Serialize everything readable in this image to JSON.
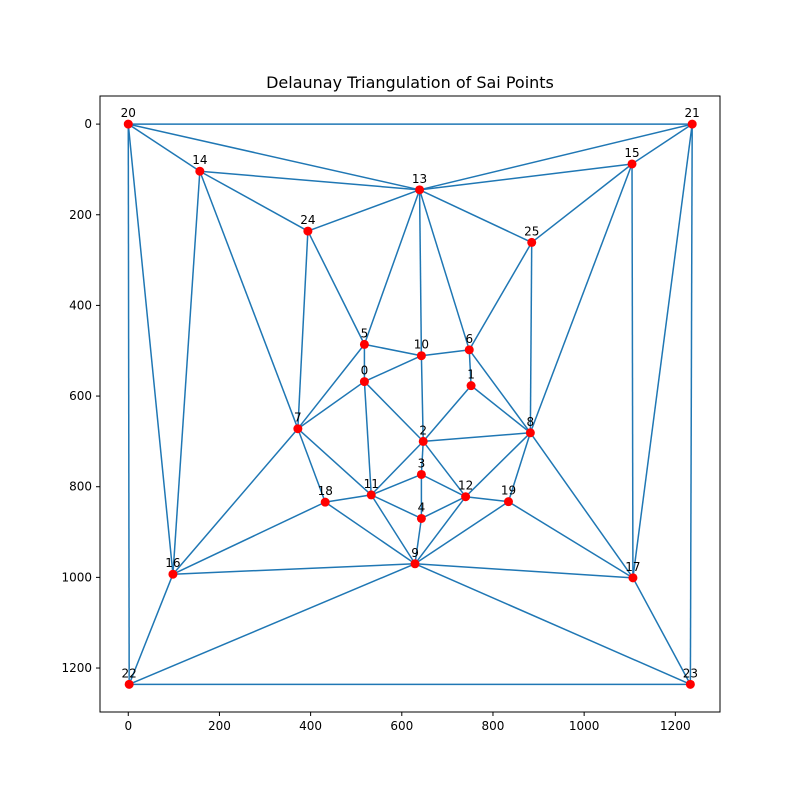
{
  "chart_data": {
    "type": "scatter",
    "title": "Delaunay Triangulation of Sai Points",
    "xlabel": "",
    "ylabel": "",
    "xlim": [
      -62,
      1298
    ],
    "ylim": [
      1297,
      -62
    ],
    "y_inverted": true,
    "grid": false,
    "x_ticks": [
      0,
      200,
      400,
      600,
      800,
      1000,
      1200
    ],
    "y_ticks": [
      0,
      200,
      400,
      600,
      800,
      1000,
      1200
    ],
    "colors": {
      "edges": "#1f77b4",
      "points": "#ff0000"
    },
    "points": [
      {
        "label": "0",
        "x": 518,
        "y": 568
      },
      {
        "label": "1",
        "x": 752,
        "y": 577
      },
      {
        "label": "2",
        "x": 647,
        "y": 700
      },
      {
        "label": "3",
        "x": 643,
        "y": 773
      },
      {
        "label": "4",
        "x": 643,
        "y": 870
      },
      {
        "label": "5",
        "x": 518,
        "y": 486
      },
      {
        "label": "6",
        "x": 748,
        "y": 498
      },
      {
        "label": "7",
        "x": 372,
        "y": 672
      },
      {
        "label": "8",
        "x": 882,
        "y": 681
      },
      {
        "label": "9",
        "x": 629,
        "y": 970
      },
      {
        "label": "10",
        "x": 643,
        "y": 511
      },
      {
        "label": "11",
        "x": 533,
        "y": 818
      },
      {
        "label": "12",
        "x": 740,
        "y": 822
      },
      {
        "label": "13",
        "x": 639,
        "y": 145
      },
      {
        "label": "14",
        "x": 157,
        "y": 104
      },
      {
        "label": "15",
        "x": 1105,
        "y": 88
      },
      {
        "label": "16",
        "x": 98,
        "y": 993
      },
      {
        "label": "17",
        "x": 1107,
        "y": 1001
      },
      {
        "label": "18",
        "x": 432,
        "y": 834
      },
      {
        "label": "19",
        "x": 834,
        "y": 833
      },
      {
        "label": "20",
        "x": 0,
        "y": 0
      },
      {
        "label": "21",
        "x": 1237,
        "y": 0
      },
      {
        "label": "22",
        "x": 2,
        "y": 1236
      },
      {
        "label": "23",
        "x": 1233,
        "y": 1236
      },
      {
        "label": "24",
        "x": 394,
        "y": 236
      },
      {
        "label": "25",
        "x": 885,
        "y": 261
      }
    ],
    "edges": [
      [
        20,
        21
      ],
      [
        20,
        14
      ],
      [
        20,
        13
      ],
      [
        20,
        16
      ],
      [
        20,
        22
      ],
      [
        14,
        13
      ],
      [
        14,
        24
      ],
      [
        14,
        7
      ],
      [
        14,
        16
      ],
      [
        13,
        24
      ],
      [
        13,
        5
      ],
      [
        13,
        10
      ],
      [
        13,
        6
      ],
      [
        13,
        25
      ],
      [
        13,
        15
      ],
      [
        13,
        21
      ],
      [
        21,
        15
      ],
      [
        21,
        17
      ],
      [
        21,
        23
      ],
      [
        15,
        25
      ],
      [
        15,
        8
      ],
      [
        15,
        17
      ],
      [
        24,
        5
      ],
      [
        24,
        7
      ],
      [
        25,
        6
      ],
      [
        25,
        8
      ],
      [
        5,
        10
      ],
      [
        5,
        0
      ],
      [
        5,
        7
      ],
      [
        10,
        6
      ],
      [
        10,
        0
      ],
      [
        10,
        2
      ],
      [
        6,
        1
      ],
      [
        6,
        8
      ],
      [
        1,
        2
      ],
      [
        1,
        8
      ],
      [
        0,
        7
      ],
      [
        0,
        11
      ],
      [
        0,
        2
      ],
      [
        7,
        11
      ],
      [
        7,
        16
      ],
      [
        7,
        18
      ],
      [
        2,
        8
      ],
      [
        2,
        11
      ],
      [
        2,
        3
      ],
      [
        2,
        12
      ],
      [
        8,
        12
      ],
      [
        8,
        19
      ],
      [
        8,
        17
      ],
      [
        3,
        11
      ],
      [
        3,
        4
      ],
      [
        3,
        12
      ],
      [
        11,
        18
      ],
      [
        11,
        9
      ],
      [
        11,
        4
      ],
      [
        4,
        12
      ],
      [
        4,
        9
      ],
      [
        12,
        9
      ],
      [
        12,
        19
      ],
      [
        19,
        9
      ],
      [
        19,
        17
      ],
      [
        18,
        16
      ],
      [
        18,
        9
      ],
      [
        9,
        16
      ],
      [
        9,
        22
      ],
      [
        9,
        23
      ],
      [
        9,
        17
      ],
      [
        16,
        22
      ],
      [
        22,
        23
      ],
      [
        17,
        23
      ]
    ]
  }
}
